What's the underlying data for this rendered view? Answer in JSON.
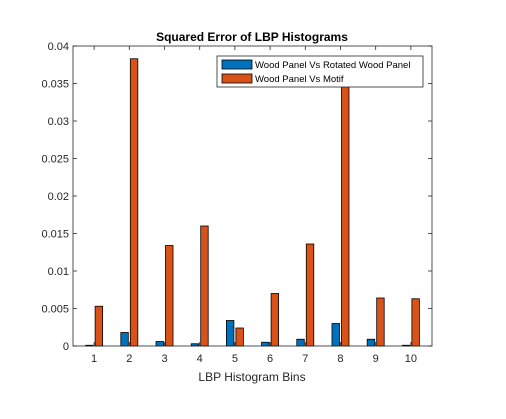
{
  "chart_data": {
    "type": "bar",
    "title": "Squared Error of LBP Histograms",
    "xlabel": "LBP Histogram Bins",
    "ylabel": "",
    "categories": [
      "1",
      "2",
      "3",
      "4",
      "5",
      "6",
      "7",
      "8",
      "9",
      "10"
    ],
    "ylim": [
      0,
      0.04
    ],
    "yticks": [
      "0",
      "0.005",
      "0.01",
      "0.015",
      "0.02",
      "0.025",
      "0.03",
      "0.035",
      "0.04"
    ],
    "ytick_values": [
      0,
      0.005,
      0.01,
      0.015,
      0.02,
      0.025,
      0.03,
      0.035,
      0.04
    ],
    "grid": false,
    "legend_position": "top-right",
    "series": [
      {
        "name": "Wood Panel Vs Rotated Wood Panel",
        "color": "#0072BD",
        "values": [
          0.0001,
          0.0018,
          0.0006,
          0.0003,
          0.0034,
          0.0005,
          0.0009,
          0.003,
          0.0009,
          0.0001
        ]
      },
      {
        "name": "Wood Panel Vs Motif",
        "color": "#D95319",
        "values": [
          0.0053,
          0.0383,
          0.0134,
          0.016,
          0.0024,
          0.007,
          0.0136,
          0.037,
          0.0064,
          0.0063
        ]
      }
    ]
  }
}
